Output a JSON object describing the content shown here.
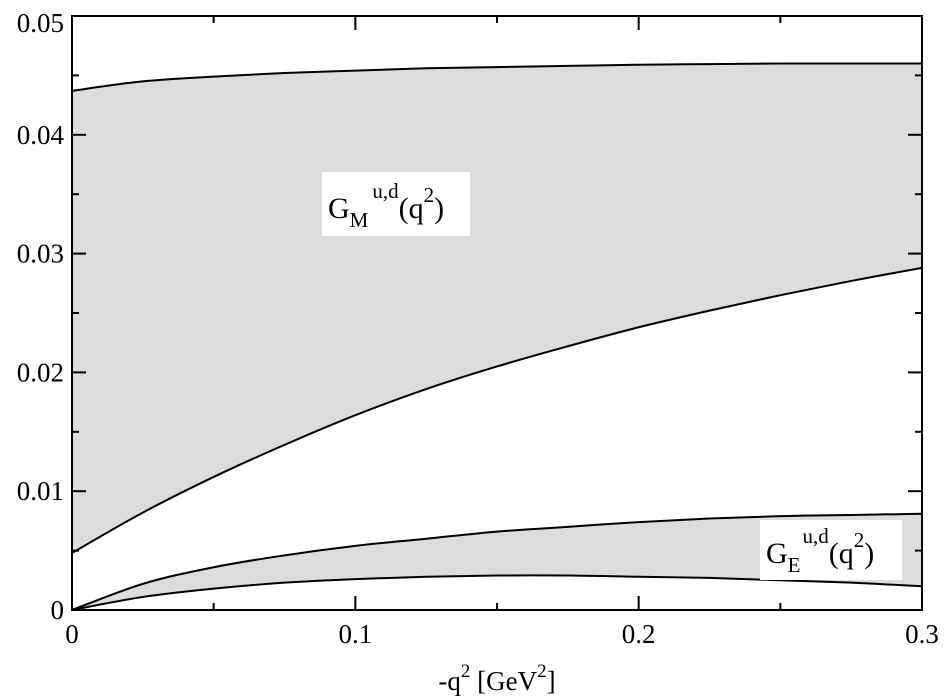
{
  "chart_data": {
    "type": "area",
    "title": "",
    "xlabel": "-q",
    "xlabel_sup": "2",
    "xlabel_units_open": " [GeV",
    "xlabel_units_sup": "2",
    "xlabel_units_close": "]",
    "ylabel": "",
    "xlim": [
      0,
      0.3
    ],
    "ylim": [
      0,
      0.05
    ],
    "x_ticks": [
      0,
      0.1,
      0.2,
      0.3
    ],
    "x_tick_labels": [
      "0",
      "0.1",
      "0.2",
      "0.3"
    ],
    "y_ticks": [
      0,
      0.01,
      0.02,
      0.03,
      0.04,
      0.05
    ],
    "y_tick_labels": [
      "0",
      "0.01",
      "0.02",
      "0.03",
      "0.04",
      "0.05"
    ],
    "grid": false,
    "band_fill_color": "#dcdcdc",
    "line_color": "#000000",
    "series": [
      {
        "name": "G_M^{u,d}(q^2)",
        "x": [
          0,
          0.025,
          0.05,
          0.075,
          0.1,
          0.125,
          0.15,
          0.175,
          0.2,
          0.225,
          0.25,
          0.275,
          0.3
        ],
        "upper": [
          0.0437,
          0.0445,
          0.0449,
          0.0452,
          0.0454,
          0.0456,
          0.0457,
          0.0458,
          0.0459,
          0.04595,
          0.046,
          0.046,
          0.046
        ],
        "lower": [
          0.0048,
          0.0082,
          0.0112,
          0.0139,
          0.0164,
          0.0186,
          0.0205,
          0.0222,
          0.0238,
          0.0252,
          0.0265,
          0.0277,
          0.0288
        ],
        "label_parts": {
          "main": "G",
          "sub": "M",
          "sup": "u,d",
          "arg_open": "(q",
          "arg_sup": "2",
          "arg_close": ")"
        }
      },
      {
        "name": "G_E^{u,d}(q^2)",
        "x": [
          0,
          0.025,
          0.05,
          0.075,
          0.1,
          0.125,
          0.15,
          0.175,
          0.2,
          0.225,
          0.25,
          0.275,
          0.3
        ],
        "upper": [
          0,
          0.0022,
          0.0036,
          0.0046,
          0.0054,
          0.006,
          0.0066,
          0.007,
          0.0074,
          0.0077,
          0.0079,
          0.008,
          0.0081
        ],
        "lower": [
          0,
          0.0011,
          0.0018,
          0.0023,
          0.0026,
          0.0028,
          0.0029,
          0.0029,
          0.0028,
          0.0027,
          0.0025,
          0.0023,
          0.002
        ],
        "label_parts": {
          "main": "G",
          "sub": "E",
          "sup": "u,d",
          "arg_open": "(q",
          "arg_sup": "2",
          "arg_close": ")"
        }
      }
    ]
  }
}
